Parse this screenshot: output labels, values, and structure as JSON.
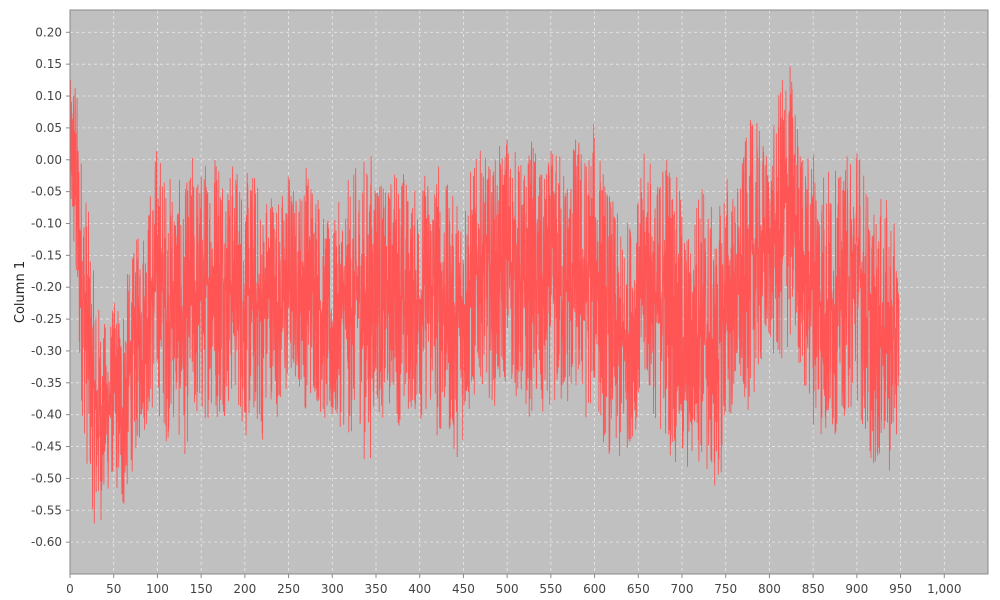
{
  "chart_data": {
    "type": "line",
    "title": "",
    "xlabel": "",
    "ylabel": "Column 1",
    "xlim": [
      0,
      1050
    ],
    "ylim": [
      -0.65,
      0.235
    ],
    "x_ticks": [
      0,
      50,
      100,
      150,
      200,
      250,
      300,
      350,
      400,
      450,
      500,
      550,
      600,
      650,
      700,
      750,
      800,
      850,
      900,
      950,
      1000
    ],
    "x_tick_labels": [
      "0",
      "50",
      "100",
      "150",
      "200",
      "250",
      "300",
      "350",
      "400",
      "450",
      "500",
      "550",
      "600",
      "650",
      "700",
      "750",
      "800",
      "850",
      "900",
      "950",
      "1,000"
    ],
    "y_ticks": [
      0.2,
      0.15,
      0.1,
      0.05,
      0.0,
      -0.05,
      -0.1,
      -0.15,
      -0.2,
      -0.25,
      -0.3,
      -0.35,
      -0.4,
      -0.45,
      -0.5,
      -0.55,
      -0.6
    ],
    "y_tick_labels": [
      "0.20",
      "0.15",
      "0.10",
      "0.05",
      "0.00",
      "-0.05",
      "-0.10",
      "-0.15",
      "-0.20",
      "-0.25",
      "-0.30",
      "-0.35",
      "-0.40",
      "-0.45",
      "-0.50",
      "-0.55",
      "-0.60"
    ],
    "grid": true,
    "legend": false,
    "colors": {
      "series": "#ff5555",
      "plot_background": "#c0c0c0",
      "grid": "#e8e8e8"
    },
    "series": [
      {
        "envelope": {
          "x": [
            0,
            5,
            10,
            15,
            20,
            25,
            30,
            40,
            50,
            60,
            70,
            80,
            90,
            100,
            110,
            120,
            130,
            140,
            150,
            160,
            170,
            180,
            190,
            200,
            210,
            220,
            230,
            240,
            250,
            260,
            270,
            280,
            290,
            300,
            310,
            320,
            330,
            340,
            350,
            360,
            370,
            380,
            390,
            400,
            410,
            420,
            430,
            440,
            450,
            460,
            470,
            480,
            490,
            500,
            510,
            520,
            530,
            540,
            550,
            560,
            570,
            580,
            590,
            600,
            610,
            620,
            630,
            640,
            650,
            660,
            670,
            680,
            690,
            700,
            710,
            720,
            730,
            740,
            750,
            760,
            770,
            780,
            790,
            800,
            810,
            820,
            830,
            840,
            850,
            860,
            870,
            880,
            890,
            900,
            910,
            920,
            930,
            940,
            948
          ],
          "y_max": [
            0.12,
            0.18,
            0.08,
            0.0,
            -0.05,
            -0.15,
            -0.2,
            -0.25,
            -0.22,
            -0.2,
            -0.15,
            -0.1,
            -0.05,
            0.05,
            -0.02,
            0.0,
            -0.05,
            0.02,
            0.0,
            0.03,
            0.06,
            0.0,
            0.01,
            -0.02,
            0.0,
            -0.05,
            -0.02,
            -0.05,
            0.0,
            -0.05,
            0.01,
            0.0,
            -0.08,
            -0.1,
            -0.05,
            -0.02,
            0.0,
            0.02,
            0.03,
            -0.05,
            0.0,
            0.01,
            -0.05,
            -0.02,
            0.0,
            0.02,
            -0.03,
            -0.05,
            -0.02,
            0.0,
            0.02,
            0.0,
            0.02,
            0.06,
            0.02,
            0.0,
            0.05,
            -0.02,
            0.02,
            0.03,
            0.0,
            0.06,
            0.02,
            0.07,
            0.0,
            -0.05,
            -0.1,
            -0.08,
            -0.05,
            0.05,
            -0.05,
            0.06,
            0.0,
            -0.05,
            -0.12,
            0.0,
            -0.05,
            -0.1,
            0.01,
            -0.05,
            0.02,
            0.08,
            0.05,
            0.02,
            0.1,
            0.2,
            0.1,
            0.0,
            0.05,
            0.02,
            0.0,
            -0.02,
            0.02,
            0.06,
            -0.02,
            -0.08,
            -0.05,
            -0.07,
            -0.15
          ],
          "y_min": [
            -0.1,
            -0.2,
            -0.35,
            -0.42,
            -0.5,
            -0.55,
            -0.6,
            -0.55,
            -0.5,
            -0.58,
            -0.5,
            -0.45,
            -0.42,
            -0.4,
            -0.45,
            -0.42,
            -0.48,
            -0.42,
            -0.45,
            -0.4,
            -0.42,
            -0.4,
            -0.38,
            -0.45,
            -0.42,
            -0.45,
            -0.38,
            -0.42,
            -0.38,
            -0.35,
            -0.4,
            -0.38,
            -0.42,
            -0.45,
            -0.42,
            -0.45,
            -0.4,
            -0.52,
            -0.4,
            -0.42,
            -0.38,
            -0.45,
            -0.4,
            -0.42,
            -0.4,
            -0.45,
            -0.42,
            -0.48,
            -0.45,
            -0.4,
            -0.35,
            -0.38,
            -0.4,
            -0.35,
            -0.38,
            -0.42,
            -0.4,
            -0.45,
            -0.38,
            -0.42,
            -0.4,
            -0.38,
            -0.42,
            -0.38,
            -0.45,
            -0.48,
            -0.5,
            -0.45,
            -0.42,
            -0.38,
            -0.42,
            -0.45,
            -0.48,
            -0.52,
            -0.5,
            -0.48,
            -0.52,
            -0.54,
            -0.45,
            -0.4,
            -0.42,
            -0.38,
            -0.35,
            -0.3,
            -0.35,
            -0.32,
            -0.3,
            -0.38,
            -0.42,
            -0.45,
            -0.48,
            -0.4,
            -0.42,
            -0.38,
            -0.45,
            -0.5,
            -0.47,
            -0.51,
            -0.4
          ]
        }
      }
    ]
  }
}
